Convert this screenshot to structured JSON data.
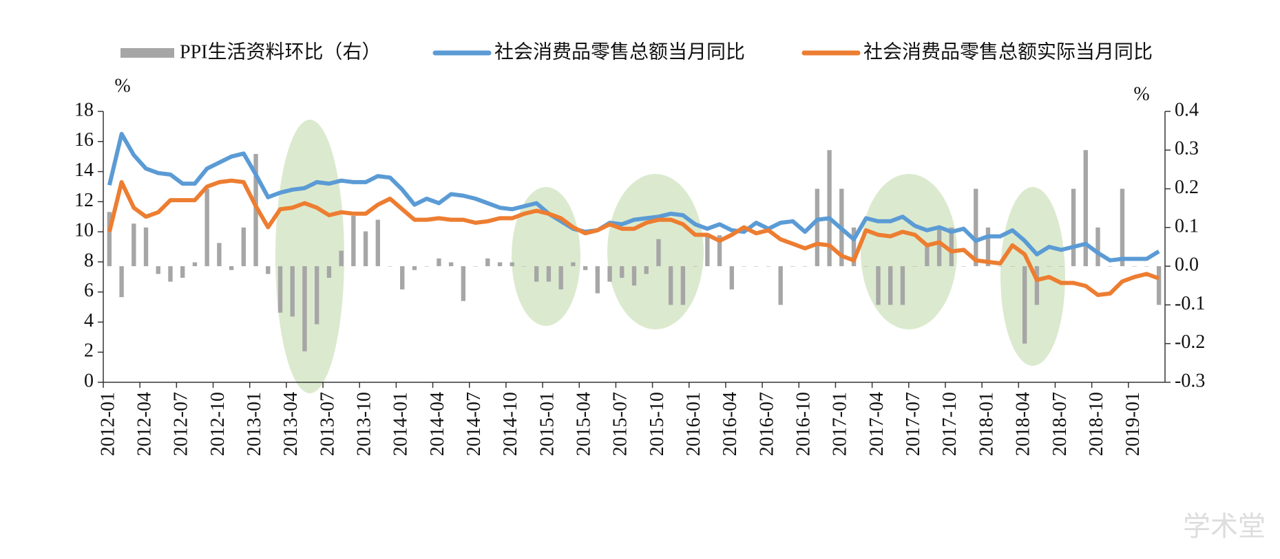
{
  "chart_data": {
    "type": "bar-line",
    "legend_position": "top",
    "y_unit": "%",
    "y2_unit": "%",
    "watermark": "学术堂",
    "categories": [
      "2012-01",
      null,
      null,
      "2012-04",
      null,
      null,
      "2012-07",
      null,
      null,
      "2012-10",
      null,
      null,
      "2013-01",
      null,
      null,
      "2013-04",
      null,
      null,
      "2013-07",
      null,
      null,
      "2013-10",
      null,
      null,
      "2014-01",
      null,
      null,
      "2014-04",
      null,
      null,
      "2014-07",
      null,
      null,
      "2014-10",
      null,
      null,
      "2015-01",
      null,
      null,
      "2015-04",
      null,
      null,
      "2015-07",
      null,
      null,
      "2015-10",
      null,
      null,
      "2016-01",
      null,
      null,
      "2016-04",
      null,
      null,
      "2016-07",
      null,
      null,
      "2016-10",
      null,
      null,
      "2017-01",
      null,
      null,
      "2017-04",
      null,
      null,
      "2017-07",
      null,
      null,
      "2017-10",
      null,
      null,
      "2018-01",
      null,
      null,
      "2018-04",
      null,
      null,
      "2018-07",
      null,
      null,
      "2018-10",
      null,
      null,
      "2019-01",
      null,
      null
    ],
    "series": [
      {
        "name": "PPI生活资料环比（右）",
        "type": "bar",
        "axis": "y2",
        "color": "#a6a6a6",
        "values": [
          0.14,
          -0.08,
          0.11,
          0.1,
          -0.02,
          -0.04,
          -0.03,
          0.01,
          0.2,
          0.06,
          -0.01,
          0.1,
          0.29,
          -0.02,
          -0.12,
          -0.13,
          -0.22,
          -0.15,
          -0.03,
          0.04,
          0.13,
          0.09,
          0.12,
          0.0,
          -0.06,
          -0.01,
          0.0,
          0.02,
          0.01,
          -0.09,
          0.0,
          0.02,
          0.01,
          0.01,
          0.0,
          -0.04,
          -0.04,
          -0.06,
          0.01,
          -0.01,
          -0.07,
          -0.04,
          -0.03,
          -0.05,
          -0.02,
          0.07,
          -0.1,
          -0.1,
          0.0,
          0.08,
          0.08,
          -0.06,
          0.0,
          0.0,
          0.0,
          -0.1,
          0.0,
          0.0,
          0.2,
          0.3,
          0.2,
          0.1,
          0.0,
          -0.1,
          -0.1,
          -0.1,
          0.0,
          0.05,
          0.1,
          0.1,
          0.0,
          0.2,
          0.1,
          0.0,
          0.0,
          -0.2,
          -0.1,
          0.0,
          0.0,
          0.2,
          0.3,
          0.1,
          0.0,
          0.2,
          0.0,
          0.0,
          -0.1
        ]
      },
      {
        "name": "社会消费品零售总额当月同比",
        "type": "line",
        "color": "#5b9bd5",
        "values": [
          13.1,
          16.5,
          15.1,
          14.2,
          13.9,
          13.8,
          13.2,
          13.2,
          14.2,
          14.6,
          15.0,
          15.2,
          13.8,
          12.3,
          12.6,
          12.8,
          12.9,
          13.3,
          13.2,
          13.4,
          13.3,
          13.3,
          13.7,
          13.6,
          12.8,
          11.8,
          12.2,
          11.9,
          12.5,
          12.4,
          12.2,
          11.9,
          11.6,
          11.5,
          11.7,
          11.9,
          11.2,
          10.7,
          10.2,
          10.0,
          10.1,
          10.6,
          10.5,
          10.8,
          10.9,
          11.0,
          11.2,
          11.1,
          10.5,
          10.2,
          10.5,
          10.1,
          10.0,
          10.6,
          10.2,
          10.6,
          10.7,
          10.0,
          10.8,
          10.9,
          10.2,
          9.5,
          10.9,
          10.7,
          10.7,
          11.0,
          10.4,
          10.1,
          10.3,
          10.0,
          10.2,
          9.4,
          9.7,
          9.7,
          10.1,
          9.4,
          8.5,
          9.0,
          8.8,
          9.0,
          9.2,
          8.6,
          8.1,
          8.2,
          8.2,
          8.2,
          8.7
        ]
      },
      {
        "name": "社会消费品零售总额实际当月同比",
        "type": "line",
        "color": "#ed7d31",
        "values": [
          10.0,
          13.3,
          11.6,
          11.0,
          11.3,
          12.1,
          12.1,
          12.1,
          13.0,
          13.3,
          13.4,
          13.3,
          11.7,
          10.3,
          11.5,
          11.6,
          11.9,
          11.6,
          11.1,
          11.3,
          11.2,
          11.2,
          11.8,
          12.2,
          11.5,
          10.8,
          10.8,
          10.9,
          10.8,
          10.8,
          10.6,
          10.7,
          10.9,
          10.9,
          11.2,
          11.4,
          11.2,
          10.9,
          10.3,
          9.9,
          10.1,
          10.5,
          10.2,
          10.2,
          10.6,
          10.8,
          10.8,
          10.5,
          9.8,
          9.8,
          9.4,
          9.8,
          10.3,
          9.9,
          10.1,
          9.5,
          9.2,
          8.9,
          9.2,
          9.1,
          8.4,
          8.1,
          10.1,
          9.8,
          9.7,
          10.0,
          9.8,
          9.1,
          9.3,
          8.7,
          8.8,
          8.1,
          8.0,
          7.9,
          9.1,
          8.5,
          6.8,
          7.0,
          6.6,
          6.6,
          6.4,
          5.8,
          5.9,
          6.7,
          7.0,
          7.2,
          6.9
        ]
      }
    ],
    "ylim": [
      0,
      18
    ],
    "yticks": [
      0,
      2,
      4,
      6,
      8,
      10,
      12,
      14,
      16,
      18
    ],
    "y2lim": [
      -0.3,
      0.4
    ],
    "y2ticks": [
      -0.3,
      -0.2,
      -0.1,
      {
        "value": 0,
        "label": "0.0"
      },
      0.1,
      0.2,
      0.3,
      0.4
    ]
  }
}
